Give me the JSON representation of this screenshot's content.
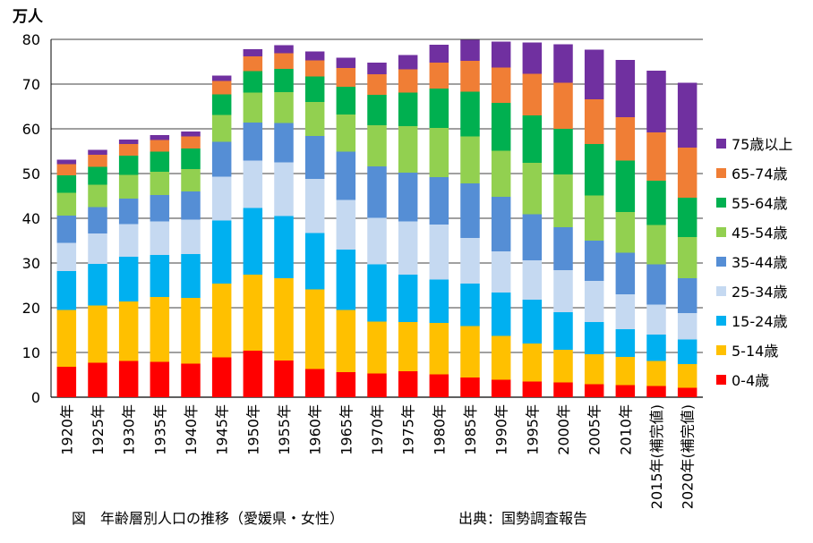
{
  "chart_data": {
    "type": "stacked_bar",
    "unit": "万人",
    "ylim": [
      0,
      80
    ],
    "yticks": [
      0,
      10,
      20,
      30,
      40,
      50,
      60,
      70,
      80
    ],
    "grid": true,
    "legend_position": "right",
    "categories": [
      "1920年",
      "1925年",
      "1930年",
      "1935年",
      "1940年",
      "1945年",
      "1950年",
      "1955年",
      "1960年",
      "1965年",
      "1970年",
      "1975年",
      "1980年",
      "1985年",
      "1990年",
      "1995年",
      "2000年",
      "2005年",
      "2010年",
      "2015年(補完値)",
      "2020年(補完値)"
    ],
    "series": [
      {
        "name": "0-4歳",
        "color": "#ff0000",
        "values": [
          6.8,
          7.7,
          8.1,
          7.9,
          7.5,
          8.9,
          10.4,
          8.2,
          6.3,
          5.6,
          5.3,
          5.8,
          5.1,
          4.4,
          3.9,
          3.5,
          3.3,
          2.9,
          2.7,
          2.5,
          2.1
        ]
      },
      {
        "name": "5-14歳",
        "color": "#ffc000",
        "values": [
          12.7,
          12.8,
          13.3,
          14.5,
          14.7,
          16.5,
          17.0,
          18.4,
          17.8,
          13.9,
          11.6,
          11.0,
          11.5,
          11.5,
          9.8,
          8.5,
          7.3,
          6.7,
          6.3,
          5.6,
          5.3
        ]
      },
      {
        "name": "15-24歳",
        "color": "#00b0f0",
        "values": [
          8.7,
          9.3,
          10.0,
          9.4,
          9.8,
          14.1,
          14.9,
          13.9,
          12.6,
          13.5,
          12.8,
          10.6,
          9.7,
          9.5,
          9.7,
          9.8,
          8.4,
          7.2,
          6.2,
          5.9,
          5.5
        ]
      },
      {
        "name": "25-34歳",
        "color": "#c5d9f1",
        "values": [
          6.3,
          6.8,
          7.3,
          7.5,
          7.7,
          9.8,
          10.6,
          12.0,
          12.1,
          11.1,
          10.4,
          11.9,
          12.3,
          10.2,
          9.2,
          8.8,
          9.4,
          9.2,
          7.8,
          6.7,
          5.9
        ]
      },
      {
        "name": "35-44歳",
        "color": "#558ed5",
        "values": [
          6.1,
          5.9,
          5.7,
          5.9,
          6.3,
          7.8,
          8.5,
          8.8,
          9.6,
          10.8,
          11.5,
          10.9,
          10.6,
          12.2,
          12.2,
          10.3,
          9.6,
          9.0,
          9.3,
          9.0,
          7.8
        ]
      },
      {
        "name": "45-54歳",
        "color": "#92d050",
        "values": [
          5.1,
          5.0,
          5.3,
          5.2,
          5.0,
          6.0,
          6.7,
          6.9,
          7.6,
          8.3,
          9.2,
          10.4,
          11.0,
          10.5,
          10.3,
          11.5,
          11.8,
          10.1,
          9.1,
          8.8,
          9.2
        ]
      },
      {
        "name": "55-64歳",
        "color": "#00b050",
        "values": [
          3.9,
          4.0,
          4.3,
          4.5,
          4.6,
          4.6,
          4.8,
          5.2,
          5.7,
          6.2,
          6.8,
          7.5,
          8.8,
          10.0,
          10.7,
          10.6,
          10.2,
          11.5,
          11.5,
          9.9,
          8.8
        ]
      },
      {
        "name": "65-74歳",
        "color": "#f07e35",
        "values": [
          2.5,
          2.7,
          2.6,
          2.6,
          2.7,
          3.0,
          3.3,
          3.5,
          3.6,
          4.2,
          4.6,
          5.2,
          5.8,
          6.9,
          7.9,
          9.3,
          10.3,
          10.0,
          9.7,
          10.8,
          11.2
        ]
      },
      {
        "name": "75歳以上",
        "color": "#7030a0",
        "values": [
          1.0,
          1.1,
          1.0,
          1.1,
          1.1,
          1.2,
          1.6,
          1.8,
          2.0,
          2.3,
          2.6,
          3.2,
          4.0,
          4.7,
          5.8,
          7.0,
          8.6,
          11.1,
          12.8,
          13.8,
          14.5
        ]
      }
    ]
  },
  "labels": {
    "unit": "万人",
    "caption": "図　年齢層別人口の推移（愛媛県・女性）",
    "source": "出典：国勢調査報告"
  }
}
